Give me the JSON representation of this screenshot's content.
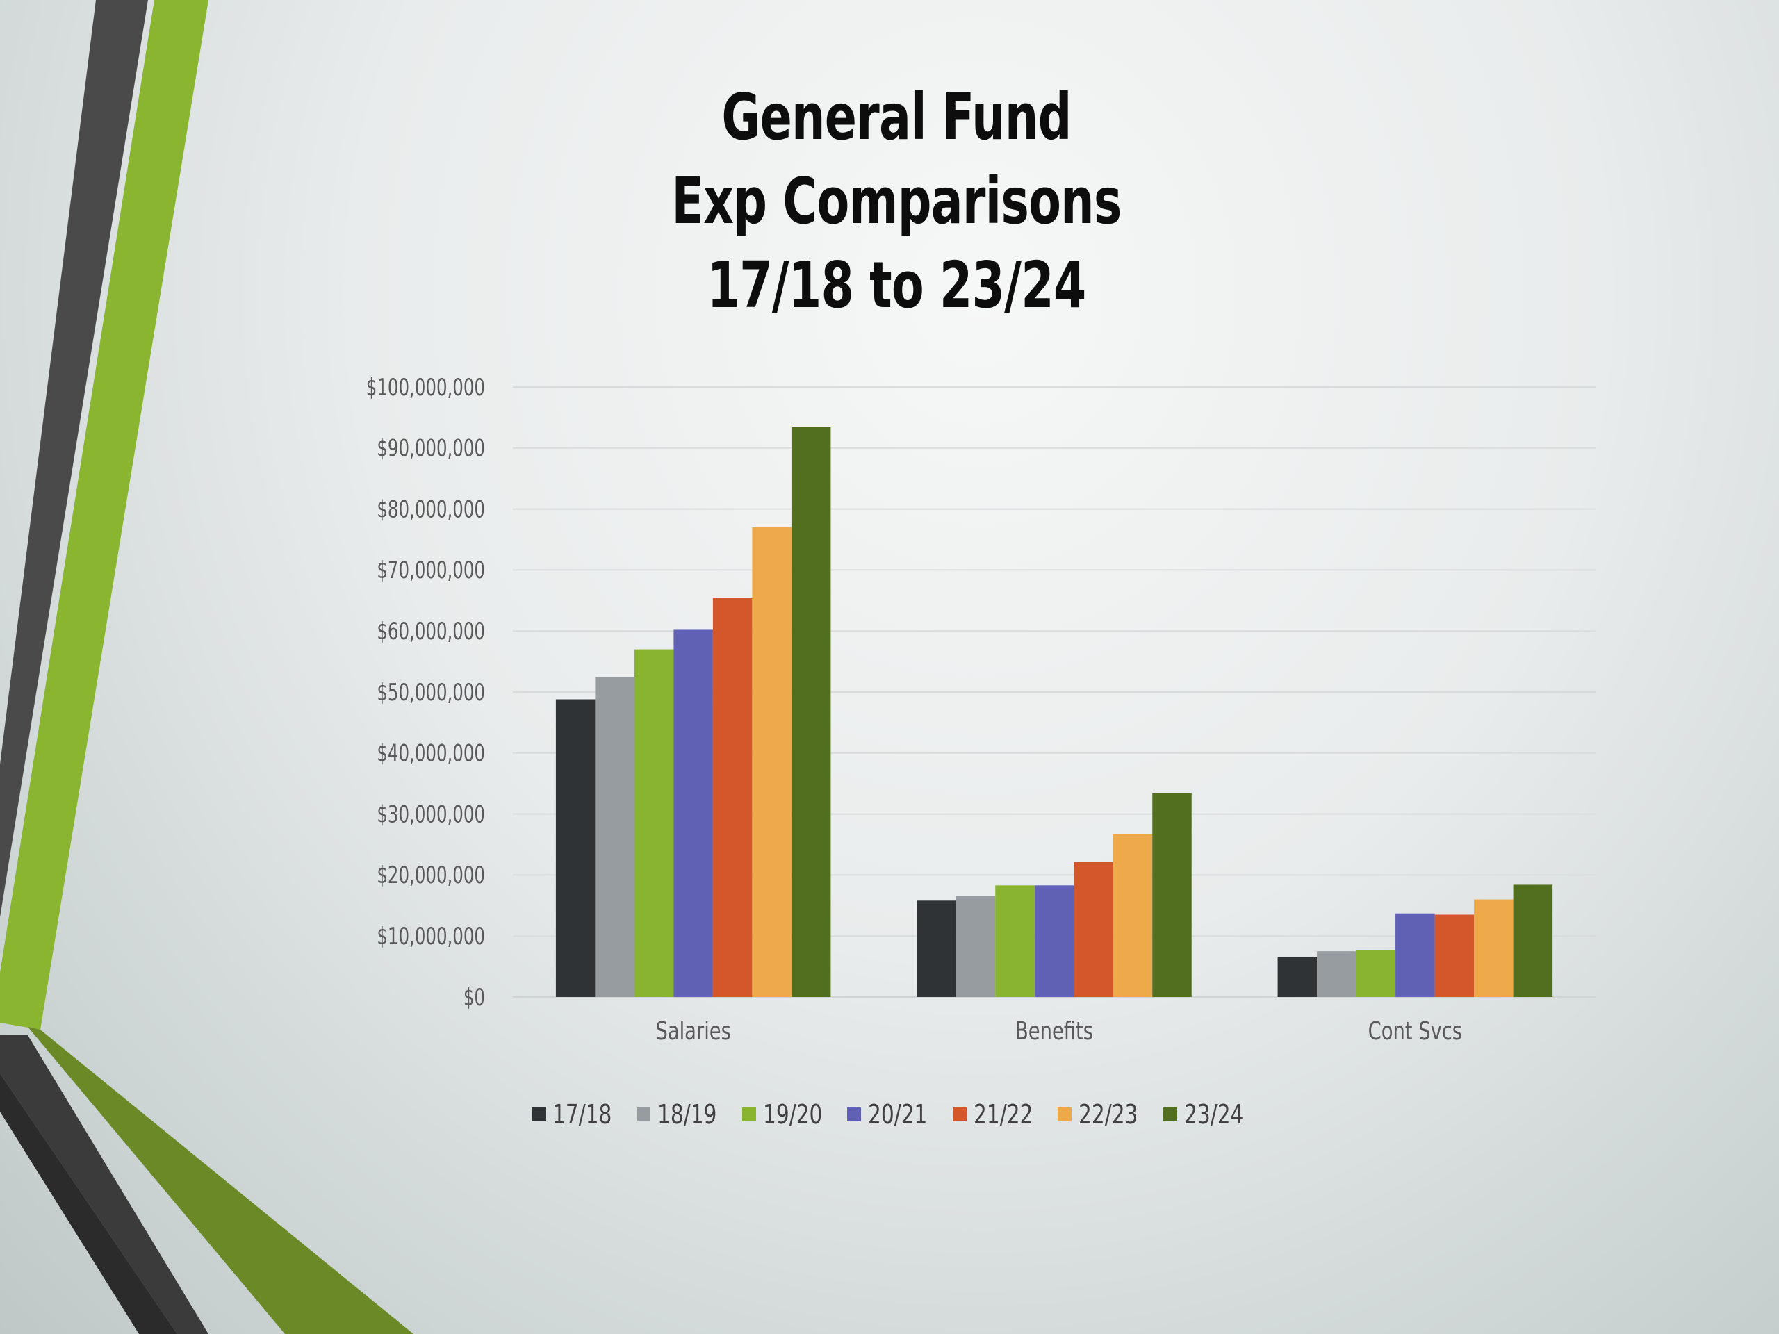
{
  "title_lines": [
    "General Fund",
    "Exp Comparisons",
    "17/18 to 23/24"
  ],
  "colors": {
    "17/18": "#2f3336",
    "18/19": "#969c9f",
    "19/20": "#88b42f",
    "20/21": "#6061b4",
    "21/22": "#d4572c",
    "22/23": "#eeaa4a",
    "23/24": "#526e1f"
  },
  "chart_data": {
    "type": "bar",
    "title": "General Fund Exp Comparisons 17/18 to 23/24",
    "categories": [
      "Salaries",
      "Benefits",
      "Cont Svcs"
    ],
    "series": [
      {
        "name": "17/18",
        "values": [
          48800000,
          15800000,
          6600000
        ]
      },
      {
        "name": "18/19",
        "values": [
          52400000,
          16600000,
          7500000
        ]
      },
      {
        "name": "19/20",
        "values": [
          57000000,
          18300000,
          7700000
        ]
      },
      {
        "name": "20/21",
        "values": [
          60200000,
          18300000,
          13700000
        ]
      },
      {
        "name": "21/22",
        "values": [
          65400000,
          22100000,
          13500000
        ]
      },
      {
        "name": "22/23",
        "values": [
          77000000,
          26700000,
          16000000
        ]
      },
      {
        "name": "23/24",
        "values": [
          93400000,
          33400000,
          18400000
        ]
      }
    ],
    "y_ticks": [
      "$0",
      "$10,000,000",
      "$20,000,000",
      "$30,000,000",
      "$40,000,000",
      "$50,000,000",
      "$60,000,000",
      "$70,000,000",
      "$80,000,000",
      "$90,000,000",
      "$100,000,000"
    ],
    "ylim": [
      0,
      100000000
    ],
    "grid": true,
    "legend_position": "bottom"
  }
}
